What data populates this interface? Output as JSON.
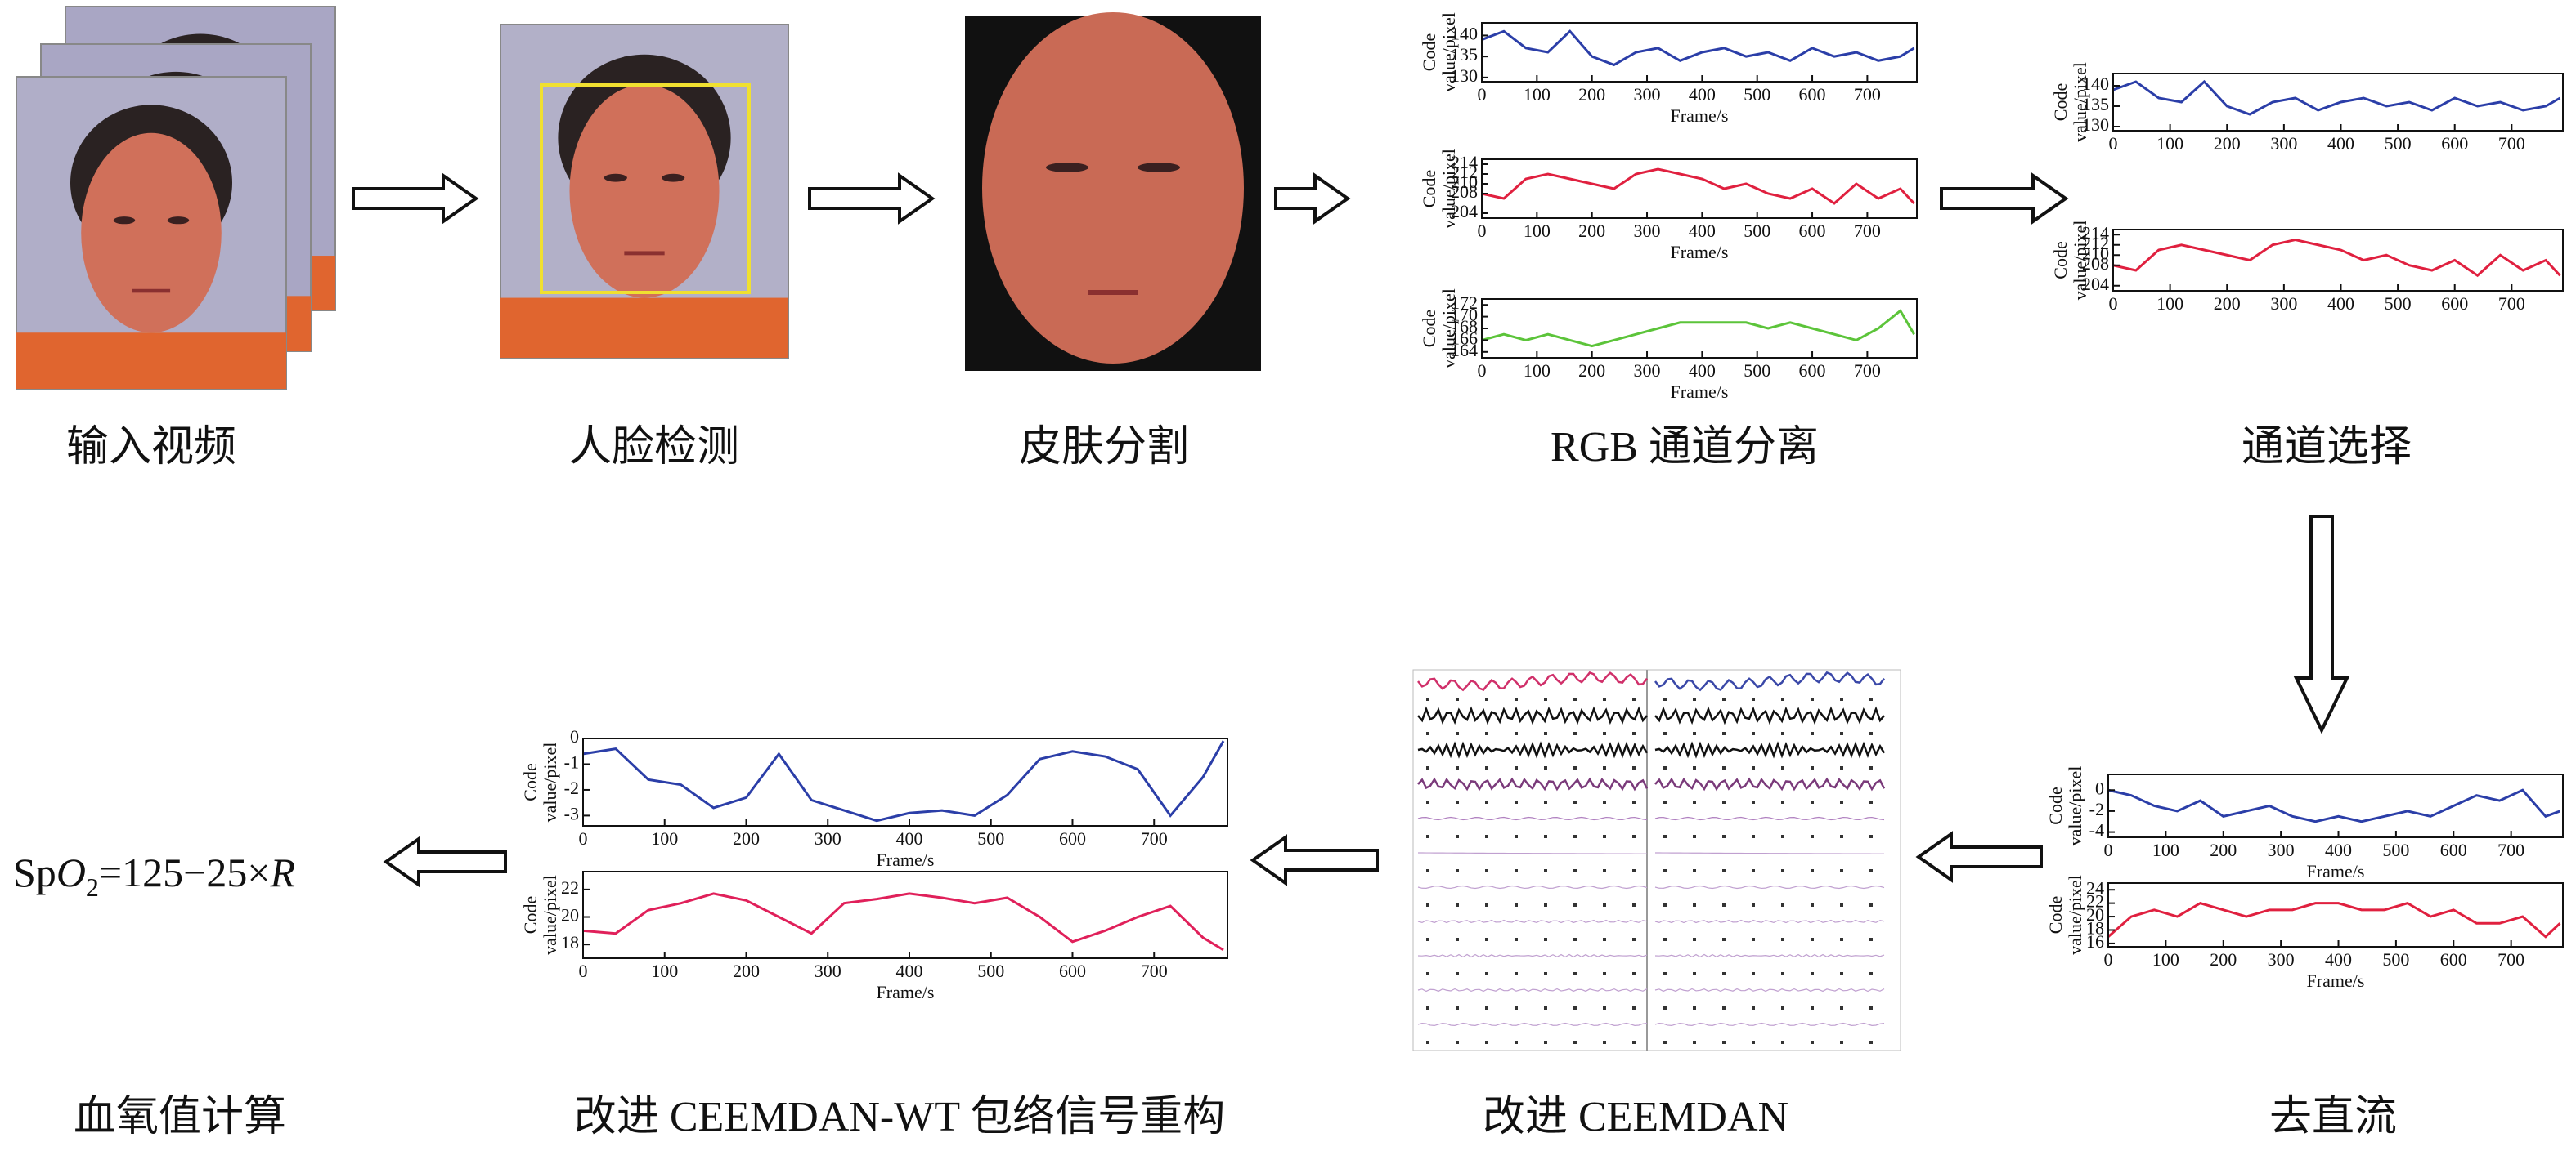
{
  "stages": [
    "输入视频",
    "人脸检测",
    "皮肤分割",
    "RGB 通道分离",
    "通道选择",
    "去直流",
    "改进 CEEMDAN",
    "改进 CEEMDAN-WT 包络信号重构",
    "血氧值计算"
  ],
  "formula": {
    "sp": "Sp",
    "o": "O",
    "sub": "2",
    "rest": "=125−25×",
    "r": "R"
  },
  "charts": [
    {
      "type": "line",
      "ylabel": [
        "Code",
        "value/pixel"
      ],
      "xlabel": "Frame/s",
      "color": "#2b3ea8",
      "x": [
        0,
        40,
        80,
        120,
        160,
        200,
        240,
        280,
        320,
        360,
        400,
        440,
        480,
        520,
        560,
        600,
        640,
        680,
        720,
        760,
        785
      ],
      "values": [
        139,
        141,
        137,
        136,
        141,
        135,
        133,
        136,
        137,
        134,
        136,
        137,
        135,
        136,
        134,
        137,
        135,
        136,
        134,
        135,
        137
      ],
      "xlim": [
        0,
        790
      ],
      "xticks": [
        0,
        100,
        200,
        300,
        400,
        500,
        600,
        700
      ],
      "ylim": [
        129,
        143
      ],
      "yticks": [
        130,
        135,
        140
      ]
    },
    {
      "type": "line",
      "ylabel": [
        "Code",
        "value/pixel"
      ],
      "xlabel": "Frame/s",
      "color": "#e0203f",
      "x": [
        0,
        40,
        80,
        120,
        160,
        200,
        240,
        280,
        320,
        360,
        400,
        440,
        480,
        520,
        560,
        600,
        640,
        680,
        720,
        760,
        785
      ],
      "values": [
        208,
        207,
        211,
        212,
        211,
        210,
        209,
        212,
        213,
        212,
        211,
        209,
        210,
        208,
        207,
        209,
        206,
        210,
        207,
        209,
        206
      ],
      "xlim": [
        0,
        790
      ],
      "xticks": [
        0,
        100,
        200,
        300,
        400,
        500,
        600,
        700
      ],
      "ylim": [
        203,
        215
      ],
      "yticks": [
        204,
        208,
        210,
        212,
        214
      ]
    },
    {
      "type": "line",
      "ylabel": [
        "Code",
        "value/pixel"
      ],
      "xlabel": "Frame/s",
      "color": "#5cc43a",
      "x": [
        0,
        40,
        80,
        120,
        160,
        200,
        240,
        280,
        320,
        360,
        400,
        440,
        480,
        520,
        560,
        600,
        640,
        680,
        720,
        760,
        785
      ],
      "values": [
        166,
        167,
        166,
        167,
        166,
        165,
        166,
        167,
        168,
        169,
        169,
        169,
        169,
        168,
        169,
        168,
        167,
        166,
        168,
        171,
        167
      ],
      "xlim": [
        0,
        790
      ],
      "xticks": [
        0,
        100,
        200,
        300,
        400,
        500,
        600,
        700
      ],
      "ylim": [
        163,
        173
      ],
      "yticks": [
        164,
        166,
        168,
        170,
        172
      ]
    },
    {
      "type": "line",
      "ylabel": [
        "Code",
        "value/pixel"
      ],
      "color": "#2b3ea8",
      "x": [
        0,
        40,
        80,
        120,
        160,
        200,
        240,
        280,
        320,
        360,
        400,
        440,
        480,
        520,
        560,
        600,
        640,
        680,
        720,
        760,
        785
      ],
      "values": [
        139,
        141,
        137,
        136,
        141,
        135,
        133,
        136,
        137,
        134,
        136,
        137,
        135,
        136,
        134,
        137,
        135,
        136,
        134,
        135,
        137
      ],
      "xlim": [
        0,
        790
      ],
      "xticks": [
        0,
        100,
        200,
        300,
        400,
        500,
        600,
        700
      ],
      "ylim": [
        129,
        143
      ],
      "yticks": [
        130,
        135,
        140
      ]
    },
    {
      "type": "line",
      "ylabel": [
        "Code",
        "value/pixel"
      ],
      "color": "#e0203f",
      "x": [
        0,
        40,
        80,
        120,
        160,
        200,
        240,
        280,
        320,
        360,
        400,
        440,
        480,
        520,
        560,
        600,
        640,
        680,
        720,
        760,
        785
      ],
      "values": [
        208,
        207,
        211,
        212,
        211,
        210,
        209,
        212,
        213,
        212,
        211,
        209,
        210,
        208,
        207,
        209,
        206,
        210,
        207,
        209,
        206
      ],
      "xlim": [
        0,
        790
      ],
      "xticks": [
        0,
        100,
        200,
        300,
        400,
        500,
        600,
        700
      ],
      "ylim": [
        203,
        215
      ],
      "yticks": [
        204,
        208,
        210,
        212,
        214
      ]
    },
    {
      "type": "line",
      "ylabel": [
        "Code",
        "value/pixel"
      ],
      "xlabel": "Frame/s",
      "color": "#2b3ea8",
      "x": [
        0,
        40,
        80,
        120,
        160,
        200,
        240,
        280,
        320,
        360,
        400,
        440,
        480,
        520,
        560,
        600,
        640,
        680,
        720,
        760,
        785
      ],
      "values": [
        0,
        -0.5,
        -1.5,
        -2,
        -1,
        -2.5,
        -2,
        -1.5,
        -2.5,
        -3,
        -2.5,
        -3,
        -2.5,
        -2,
        -2.5,
        -1.5,
        -0.5,
        -1,
        0,
        -2.5,
        -2
      ],
      "xlim": [
        0,
        790
      ],
      "xticks": [
        0,
        100,
        200,
        300,
        400,
        500,
        600,
        700
      ],
      "ylim": [
        -4.5,
        1.5
      ],
      "yticks": [
        -4,
        -2,
        0
      ]
    },
    {
      "type": "line",
      "ylabel": [
        "Code",
        "value/pixel"
      ],
      "xlabel": "Frame/s",
      "color": "#e0203f",
      "x": [
        0,
        40,
        80,
        120,
        160,
        200,
        240,
        280,
        320,
        360,
        400,
        440,
        480,
        520,
        560,
        600,
        640,
        680,
        720,
        760,
        785
      ],
      "values": [
        17,
        20,
        21,
        20,
        22,
        21,
        20,
        21,
        21,
        22,
        22,
        21,
        21,
        22,
        20,
        21,
        19,
        19,
        20,
        17,
        19
      ],
      "xlim": [
        0,
        790
      ],
      "xticks": [
        0,
        100,
        200,
        300,
        400,
        500,
        600,
        700
      ],
      "ylim": [
        15.5,
        25
      ],
      "yticks": [
        16,
        18,
        20,
        22,
        24
      ]
    },
    {
      "type": "line",
      "ylabel": [
        "Code",
        "value/pixel"
      ],
      "xlabel": "Frame/s",
      "color": "#2b3ea8",
      "x": [
        0,
        40,
        80,
        120,
        160,
        200,
        240,
        280,
        320,
        360,
        400,
        440,
        480,
        520,
        560,
        600,
        640,
        680,
        720,
        760,
        785
      ],
      "values": [
        -0.6,
        -0.4,
        -1.6,
        -1.8,
        -2.7,
        -2.3,
        -0.6,
        -2.4,
        -2.8,
        -3.2,
        -2.9,
        -2.8,
        -3.0,
        -2.2,
        -0.8,
        -0.5,
        -0.7,
        -1.2,
        -3.0,
        -1.5,
        -0.1
      ],
      "xlim": [
        0,
        790
      ],
      "xticks": [
        0,
        100,
        200,
        300,
        400,
        500,
        600,
        700
      ],
      "ylim": [
        -3.4,
        0
      ],
      "yticks": [
        0,
        -1,
        -2,
        -3
      ]
    },
    {
      "type": "line",
      "ylabel": [
        "Code",
        "value/pixel"
      ],
      "xlabel": "Frame/s",
      "color": "#e0205a",
      "x": [
        0,
        40,
        80,
        120,
        160,
        200,
        240,
        280,
        320,
        360,
        400,
        440,
        480,
        520,
        560,
        600,
        640,
        680,
        720,
        760,
        785
      ],
      "values": [
        19,
        18.8,
        20.5,
        21,
        21.7,
        21.2,
        20,
        18.8,
        21,
        21.3,
        21.7,
        21.4,
        21,
        21.4,
        20,
        18.2,
        19,
        20,
        20.8,
        18.5,
        17.6
      ],
      "xlim": [
        0,
        790
      ],
      "xticks": [
        0,
        100,
        200,
        300,
        400,
        500,
        600,
        700
      ],
      "ylim": [
        17,
        23.3
      ],
      "yticks": [
        18,
        20,
        22
      ]
    }
  ]
}
